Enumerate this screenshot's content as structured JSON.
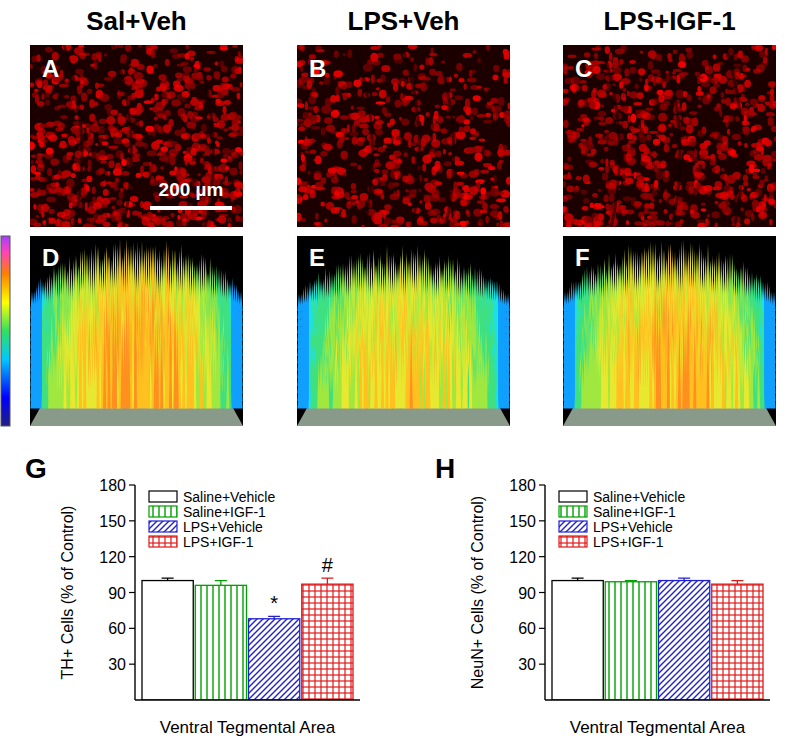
{
  "figure": {
    "headers": [
      "Sal+Veh",
      "LPS+Veh",
      "LPS+IGF-1"
    ],
    "image_panels": [
      "A",
      "B",
      "C"
    ],
    "surface_panels": [
      "D",
      "E",
      "F"
    ],
    "scale_bar": "200 µm"
  },
  "chart_data": [
    {
      "type": "bar",
      "title": "G",
      "y_label": "TH+ Cells (% of Control)",
      "categories": [
        "Ventral Tegmental Area"
      ],
      "ylim": [
        0,
        180
      ],
      "yticks": [
        30,
        60,
        90,
        120,
        150,
        180
      ],
      "legend": "upper left",
      "series": [
        {
          "name": "Saline+Vehicle",
          "color": "#000000",
          "values": [
            100
          ],
          "errors": [
            2
          ]
        },
        {
          "name": "Saline+IGF-1",
          "color": "#00a000",
          "values": [
            96
          ],
          "errors": [
            4
          ]
        },
        {
          "name": "LPS+Vehicle",
          "color": "#2020d0",
          "values": [
            68
          ],
          "errors": [
            2
          ],
          "annotation": "*"
        },
        {
          "name": "LPS+IGF-1",
          "color": "#e01818",
          "values": [
            97
          ],
          "errors": [
            5
          ],
          "annotation": "#"
        }
      ]
    },
    {
      "type": "bar",
      "title": "H",
      "y_label": "NeuN+ Cells (% of Control)",
      "categories": [
        "Ventral Tegmental Area"
      ],
      "ylim": [
        0,
        180
      ],
      "yticks": [
        30,
        60,
        90,
        120,
        150,
        180
      ],
      "legend": "upper left",
      "series": [
        {
          "name": "Saline+Vehicle",
          "color": "#000000",
          "values": [
            100
          ],
          "errors": [
            2
          ]
        },
        {
          "name": "Saline+IGF-1",
          "color": "#00a000",
          "values": [
            99
          ],
          "errors": [
            1
          ]
        },
        {
          "name": "LPS+Vehicle",
          "color": "#2020d0",
          "values": [
            100
          ],
          "errors": [
            2
          ]
        },
        {
          "name": "LPS+IGF-1",
          "color": "#e01818",
          "values": [
            97
          ],
          "errors": [
            3
          ]
        }
      ]
    }
  ]
}
